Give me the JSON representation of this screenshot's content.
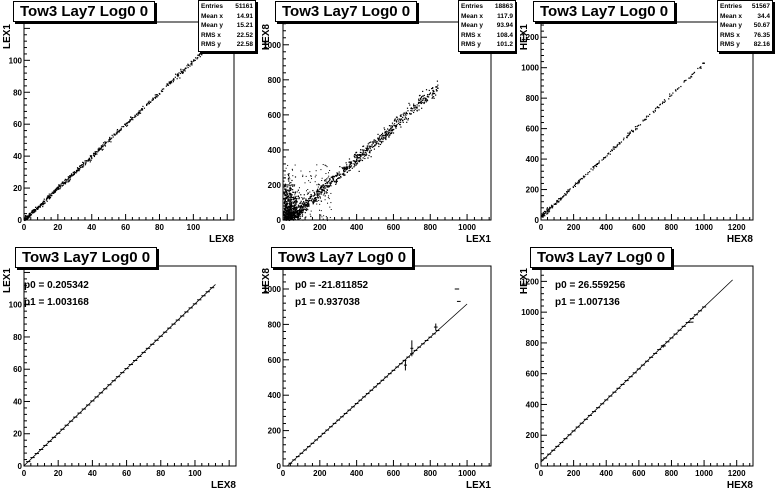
{
  "chart_data": [
    {
      "id": "p1",
      "type": "scatter",
      "title": "Tow3 Lay7 Log0 0",
      "xlabel": "LEX8",
      "ylabel": "LEX1",
      "xlim": [
        0,
        124
      ],
      "ylim": [
        0,
        124
      ],
      "xticks": [
        0,
        20,
        40,
        60,
        80,
        100
      ],
      "yticks": [
        0,
        20,
        40,
        60,
        80,
        100
      ],
      "stats": [
        {
          "k": "Entries",
          "v": "51161"
        },
        {
          "k": "Mean x",
          "v": "14.91"
        },
        {
          "k": "Mean y",
          "v": "15.21"
        },
        {
          "k": "RMS x",
          "v": "22.52"
        },
        {
          "k": "RMS y",
          "v": "22.58"
        }
      ],
      "fit": null,
      "trend": {
        "slope": 1.0,
        "intercept": 0.3,
        "xmax": 112,
        "spread": 0.8,
        "n": 600
      }
    },
    {
      "id": "p2",
      "type": "scatter",
      "title": "Tow3 Lay7 Log0 0",
      "xlabel": "LEX1",
      "ylabel": "HEX8",
      "xlim": [
        0,
        1130
      ],
      "ylim": [
        0,
        1130
      ],
      "xticks": [
        0,
        200,
        400,
        600,
        800,
        1000
      ],
      "yticks": [
        0,
        200,
        400,
        600,
        800,
        1000
      ],
      "stats": [
        {
          "k": "Entries",
          "v": "18863"
        },
        {
          "k": "Mean x",
          "v": "117.9"
        },
        {
          "k": "Mean y",
          "v": "93.94"
        },
        {
          "k": "RMS x",
          "v": "108.4"
        },
        {
          "k": "RMS y",
          "v": "101.2"
        }
      ],
      "fit": null,
      "trend": {
        "slope": 0.93,
        "intercept": -21,
        "xmax": 840,
        "spread": 18,
        "n": 900
      }
    },
    {
      "id": "p3",
      "type": "scatter",
      "title": "Tow3 Lay7 Log0 0",
      "xlabel": "HEX8",
      "ylabel": "HEX1",
      "xlim": [
        0,
        1300
      ],
      "ylim": [
        0,
        1300
      ],
      "xticks": [
        0,
        200,
        400,
        600,
        800,
        1000,
        1200
      ],
      "yticks": [
        0,
        200,
        400,
        600,
        800,
        1000,
        1200
      ],
      "stats": [
        {
          "k": "Entries",
          "v": "51567"
        },
        {
          "k": "Mean x",
          "v": "34.4"
        },
        {
          "k": "Mean y",
          "v": "50.67"
        },
        {
          "k": "RMS x",
          "v": "76.35"
        },
        {
          "k": "RMS y",
          "v": "82.16"
        }
      ],
      "fit": null,
      "trend": {
        "slope": 1.007,
        "intercept": 26.6,
        "xmax": 1000,
        "spread": 6,
        "n": 260
      }
    },
    {
      "id": "p4",
      "type": "line",
      "title": "Tow3 Lay7 Log0 0",
      "xlabel": "LEX8",
      "ylabel": "LEX1",
      "xlim": [
        0,
        124
      ],
      "ylim": [
        0,
        124
      ],
      "xticks": [
        0,
        20,
        40,
        60,
        80,
        100
      ],
      "yticks": [
        0,
        20,
        40,
        60,
        80,
        100
      ],
      "stats": null,
      "fit": {
        "p0_label": "p0 = 0.205342",
        "p1_label": "p1 = 1.003168",
        "p0": 0.205342,
        "p1": 1.003168,
        "xmin": 0,
        "xmax": 112
      },
      "profile": {
        "step": 2.5,
        "xmax": 112
      }
    },
    {
      "id": "p5",
      "type": "line",
      "title": "Tow3 Lay7 Log0 0",
      "xlabel": "LEX1",
      "ylabel": "HEX8",
      "xlim": [
        0,
        1130
      ],
      "ylim": [
        0,
        1130
      ],
      "xticks": [
        0,
        200,
        400,
        600,
        800,
        1000
      ],
      "yticks": [
        0,
        200,
        400,
        600,
        800,
        1000
      ],
      "stats": null,
      "fit": {
        "p0_label": "p0 = -21.811852",
        "p1_label": "p1 = 0.937038",
        "p0": -21.811852,
        "p1": 0.937038,
        "xmin": 0,
        "xmax": 1000
      },
      "profile": {
        "step": 20,
        "xmax": 840
      },
      "outliers": [
        {
          "x": 665,
          "y": 570,
          "ex": 8,
          "ey": 30
        },
        {
          "x": 700,
          "y": 665,
          "ex": 8,
          "ey": 45
        },
        {
          "x": 830,
          "y": 785,
          "ex": 10,
          "ey": 20
        },
        {
          "x": 945,
          "y": 1000,
          "ex": 12,
          "ey": 0
        },
        {
          "x": 955,
          "y": 930,
          "ex": 10,
          "ey": 0
        }
      ]
    },
    {
      "id": "p6",
      "type": "line",
      "title": "Tow3 Lay7 Log0 0",
      "xlabel": "HEX8",
      "ylabel": "HEX1",
      "xlim": [
        0,
        1300
      ],
      "ylim": [
        0,
        1300
      ],
      "xticks": [
        0,
        200,
        400,
        600,
        800,
        1000,
        1200
      ],
      "yticks": [
        0,
        200,
        400,
        600,
        800,
        1000,
        1200
      ],
      "stats": null,
      "fit": {
        "p0_label": "p0 = 26.559256",
        "p1_label": "p1 = 1.007136",
        "p0": 26.559256,
        "p1": 1.007136,
        "xmin": 0,
        "xmax": 1175
      },
      "profile": {
        "step": 25,
        "xmax": 1000
      },
      "outliers": [
        {
          "x": 750,
          "y": 780,
          "ex": 15,
          "ey": 10
        },
        {
          "x": 920,
          "y": 935,
          "ex": 15,
          "ey": 0
        }
      ]
    }
  ]
}
